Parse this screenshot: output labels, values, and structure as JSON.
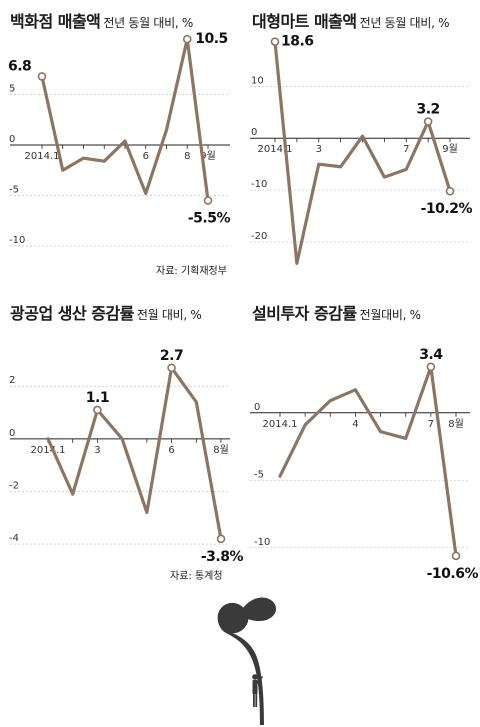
{
  "charts": [
    {
      "title": "백화점 매출액",
      "unit": "전년 동월 대비, %",
      "source": "자료: 기획재정부",
      "chart_data": {
        "type": "line",
        "x": [
          "2014.1",
          "2",
          "3",
          "4",
          "5",
          "6",
          "7",
          "8",
          "9"
        ],
        "x_tick_labels": {
          "0": "2014.1",
          "5": "6",
          "7": "8",
          "8": "9월"
        },
        "values": [
          6.8,
          -2.5,
          -1.3,
          -1.6,
          0.4,
          -4.8,
          1.5,
          10.5,
          -5.5
        ],
        "y_ticks": [
          5,
          0,
          -5,
          -10
        ],
        "ylim": [
          -11,
          12
        ],
        "data_labels": {
          "0": "6.8",
          "7": "10.5",
          "8": "-5.5%"
        }
      }
    },
    {
      "title": "대형마트 매출액",
      "unit": "전년 동월 대비, %",
      "source": "",
      "chart_data": {
        "type": "line",
        "x": [
          "2014.1",
          "2",
          "3",
          "4",
          "5",
          "6",
          "7",
          "8",
          "9"
        ],
        "x_tick_labels": {
          "0": "2014.1",
          "2": "3",
          "6": "7",
          "8": "9월"
        },
        "values": [
          18.6,
          -24.1,
          -5.0,
          -5.5,
          0.4,
          -7.5,
          -6.0,
          3.2,
          -10.2
        ],
        "y_ticks": [
          10,
          0,
          -10,
          -20
        ],
        "ylim": [
          -25,
          22
        ],
        "data_labels": {
          "0": "18.6",
          "7": "3.2",
          "8": "-10.2%"
        }
      }
    },
    {
      "title": "광공업 생산 증감률",
      "unit": "전월 대비, %",
      "source": "자료: 통계청",
      "chart_data": {
        "type": "line",
        "x": [
          "2014.1",
          "2",
          "3",
          "4",
          "5",
          "6",
          "7",
          "8"
        ],
        "x_tick_labels": {
          "0": "2014.1",
          "2": "3",
          "5": "6",
          "7": "8월"
        },
        "values": [
          0.0,
          -2.1,
          1.1,
          0.0,
          -2.8,
          2.7,
          1.4,
          -3.8
        ],
        "y_ticks": [
          2,
          0,
          -2,
          -4
        ],
        "ylim": [
          -4.3,
          3.3
        ],
        "data_labels": {
          "2": "1.1",
          "5": "2.7",
          "7": "-3.8%"
        }
      }
    },
    {
      "title": "설비투자 증감률",
      "unit": "전월대비, %",
      "source": "",
      "chart_data": {
        "type": "line",
        "x": [
          "2014.1",
          "2",
          "3",
          "4",
          "5",
          "6",
          "7",
          "8"
        ],
        "x_tick_labels": {
          "0": "2014.1",
          "3": "4",
          "6": "7",
          "7": "8월"
        },
        "values": [
          -4.7,
          -0.9,
          0.9,
          1.7,
          -1.4,
          -1.9,
          3.4,
          -10.6
        ],
        "y_ticks": [
          0,
          -5,
          -10
        ],
        "ylim": [
          -11.5,
          4.5
        ],
        "data_labels": {
          "6": "3.4",
          "7": "-10.6%"
        }
      }
    }
  ],
  "colors": {
    "line": "#8c7563",
    "marker_fill": "#ffffff",
    "axis": "#222222",
    "grid": "#bdbdbd",
    "silhouette": "#3a3a3a"
  },
  "illustration": "sprout-with-person-silhouette"
}
